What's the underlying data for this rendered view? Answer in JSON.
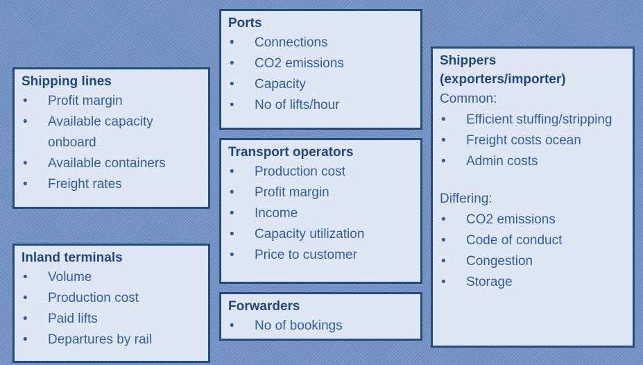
{
  "boxes": [
    {
      "title": "Shipping lines",
      "groups": [
        {
          "items": [
            "Profit margin",
            "Available capacity onboard",
            "Available containers",
            "Freight rates"
          ]
        }
      ]
    },
    {
      "title": "Inland terminals",
      "groups": [
        {
          "items": [
            "Volume",
            "Production cost",
            "Paid lifts",
            "Departures by rail"
          ]
        }
      ]
    },
    {
      "title": "Ports",
      "groups": [
        {
          "items": [
            "Connections",
            "CO2 emissions",
            "Capacity",
            "No of lifts/hour"
          ]
        }
      ]
    },
    {
      "title": "Transport operators",
      "groups": [
        {
          "items": [
            "Production cost",
            "Profit margin",
            "Income",
            "Capacity utilization",
            "Price to customer"
          ]
        }
      ]
    },
    {
      "title": "Forwarders",
      "groups": [
        {
          "items": [
            "No of bookings"
          ]
        }
      ]
    },
    {
      "title": "Shippers (exporters/importer)",
      "groups": [
        {
          "label": "Common:",
          "items": [
            "Efficient stuffing/stripping",
            "Freight costs ocean",
            "Admin costs"
          ]
        },
        {
          "label": "Differing:",
          "items": [
            "CO2 emissions",
            "Code of conduct",
            "Congestion",
            "Storage"
          ]
        }
      ]
    }
  ]
}
